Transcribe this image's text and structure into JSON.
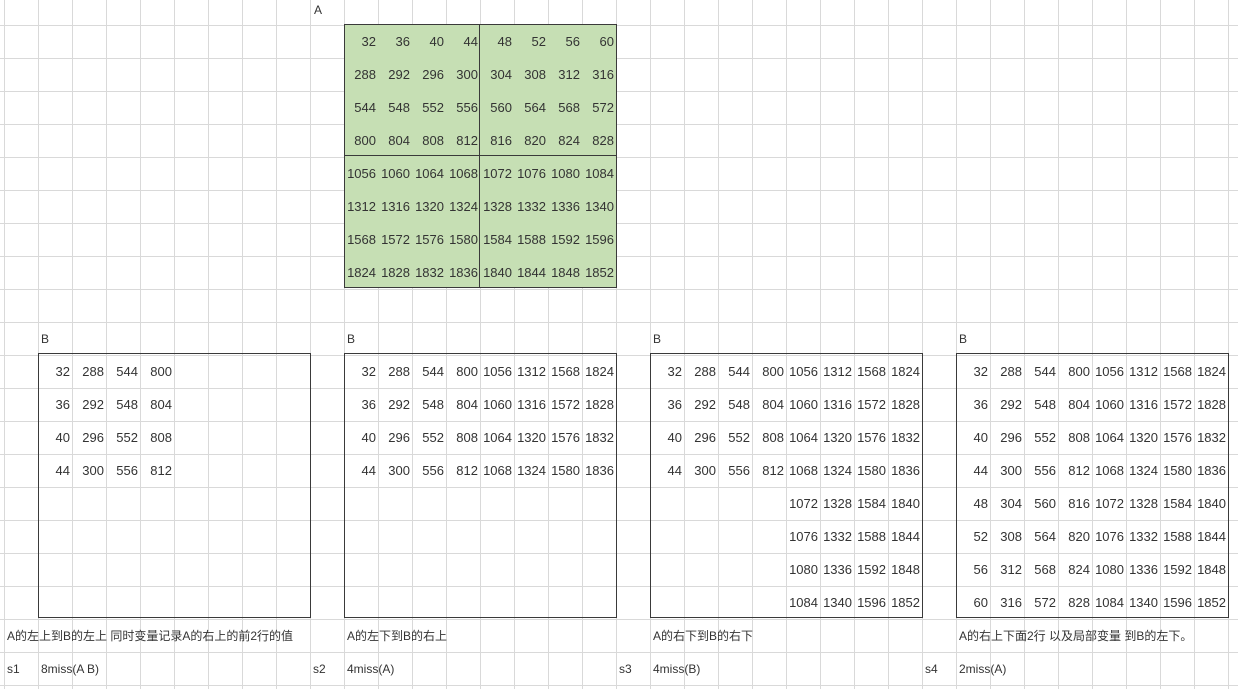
{
  "matrix_a": {
    "label": "A",
    "rows": [
      [
        "32",
        "36",
        "40",
        "44",
        "48",
        "52",
        "56",
        "60"
      ],
      [
        "288",
        "292",
        "296",
        "300",
        "304",
        "308",
        "312",
        "316"
      ],
      [
        "544",
        "548",
        "552",
        "556",
        "560",
        "564",
        "568",
        "572"
      ],
      [
        "800",
        "804",
        "808",
        "812",
        "816",
        "820",
        "824",
        "828"
      ],
      [
        "1056",
        "1060",
        "1064",
        "1068",
        "1072",
        "1076",
        "1080",
        "1084"
      ],
      [
        "1312",
        "1316",
        "1320",
        "1324",
        "1328",
        "1332",
        "1336",
        "1340"
      ],
      [
        "1568",
        "1572",
        "1576",
        "1580",
        "1584",
        "1588",
        "1592",
        "1596"
      ],
      [
        "1824",
        "1828",
        "1832",
        "1836",
        "1840",
        "1844",
        "1848",
        "1852"
      ]
    ]
  },
  "panels": [
    {
      "label": "B",
      "rows": [
        [
          "32",
          "288",
          "544",
          "800",
          "",
          "",
          "",
          ""
        ],
        [
          "36",
          "292",
          "548",
          "804",
          "",
          "",
          "",
          ""
        ],
        [
          "40",
          "296",
          "552",
          "808",
          "",
          "",
          "",
          ""
        ],
        [
          "44",
          "300",
          "556",
          "812",
          "",
          "",
          "",
          ""
        ],
        [
          "",
          "",
          "",
          "",
          "",
          "",
          "",
          ""
        ],
        [
          "",
          "",
          "",
          "",
          "",
          "",
          "",
          ""
        ],
        [
          "",
          "",
          "",
          "",
          "",
          "",
          "",
          ""
        ],
        [
          "",
          "",
          "",
          "",
          "",
          "",
          "",
          ""
        ]
      ],
      "description": "A的左上到B的左上 同时变量记录A的右上的前2行的值",
      "step": "s1",
      "miss": "8miss(A B)"
    },
    {
      "label": "B",
      "rows": [
        [
          "32",
          "288",
          "544",
          "800",
          "1056",
          "1312",
          "1568",
          "1824"
        ],
        [
          "36",
          "292",
          "548",
          "804",
          "1060",
          "1316",
          "1572",
          "1828"
        ],
        [
          "40",
          "296",
          "552",
          "808",
          "1064",
          "1320",
          "1576",
          "1832"
        ],
        [
          "44",
          "300",
          "556",
          "812",
          "1068",
          "1324",
          "1580",
          "1836"
        ],
        [
          "",
          "",
          "",
          "",
          "",
          "",
          "",
          ""
        ],
        [
          "",
          "",
          "",
          "",
          "",
          "",
          "",
          ""
        ],
        [
          "",
          "",
          "",
          "",
          "",
          "",
          "",
          ""
        ],
        [
          "",
          "",
          "",
          "",
          "",
          "",
          "",
          ""
        ]
      ],
      "description": "A的左下到B的右上",
      "step": "s2",
      "miss": "4miss(A)"
    },
    {
      "label": "B",
      "rows": [
        [
          "32",
          "288",
          "544",
          "800",
          "1056",
          "1312",
          "1568",
          "1824"
        ],
        [
          "36",
          "292",
          "548",
          "804",
          "1060",
          "1316",
          "1572",
          "1828"
        ],
        [
          "40",
          "296",
          "552",
          "808",
          "1064",
          "1320",
          "1576",
          "1832"
        ],
        [
          "44",
          "300",
          "556",
          "812",
          "1068",
          "1324",
          "1580",
          "1836"
        ],
        [
          "",
          "",
          "",
          "",
          "1072",
          "1328",
          "1584",
          "1840"
        ],
        [
          "",
          "",
          "",
          "",
          "1076",
          "1332",
          "1588",
          "1844"
        ],
        [
          "",
          "",
          "",
          "",
          "1080",
          "1336",
          "1592",
          "1848"
        ],
        [
          "",
          "",
          "",
          "",
          "1084",
          "1340",
          "1596",
          "1852"
        ]
      ],
      "description": "A的右下到B的右下",
      "step": "s3",
      "miss": "4miss(B)"
    },
    {
      "label": "B",
      "rows": [
        [
          "32",
          "288",
          "544",
          "800",
          "1056",
          "1312",
          "1568",
          "1824"
        ],
        [
          "36",
          "292",
          "548",
          "804",
          "1060",
          "1316",
          "1572",
          "1828"
        ],
        [
          "40",
          "296",
          "552",
          "808",
          "1064",
          "1320",
          "1576",
          "1832"
        ],
        [
          "44",
          "300",
          "556",
          "812",
          "1068",
          "1324",
          "1580",
          "1836"
        ],
        [
          "48",
          "304",
          "560",
          "816",
          "1072",
          "1328",
          "1584",
          "1840"
        ],
        [
          "52",
          "308",
          "564",
          "820",
          "1076",
          "1332",
          "1588",
          "1844"
        ],
        [
          "56",
          "312",
          "568",
          "824",
          "1080",
          "1336",
          "1592",
          "1848"
        ],
        [
          "60",
          "316",
          "572",
          "828",
          "1084",
          "1340",
          "1596",
          "1852"
        ]
      ],
      "description": "A的右上下面2行 以及局部变量 到B的左下。",
      "step": "s4",
      "miss": "2miss(A)"
    }
  ]
}
